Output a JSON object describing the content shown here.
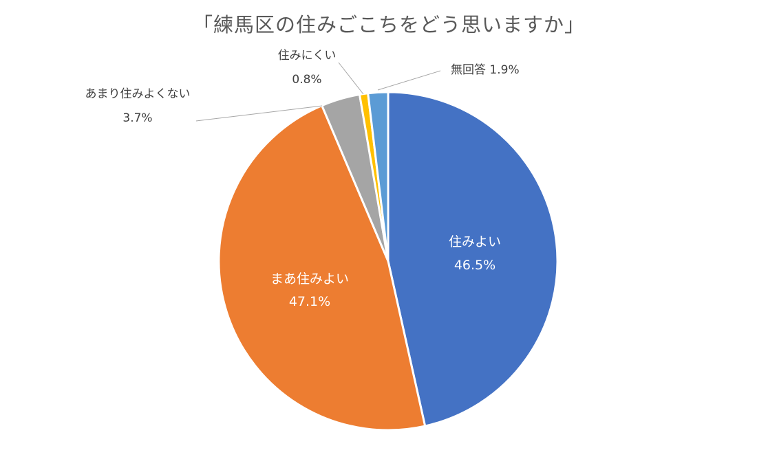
{
  "chart_data": {
    "type": "pie",
    "title": "「練馬区の住みごこちをどう思いますか」",
    "slices": [
      {
        "label": "住みよい",
        "value": 46.5,
        "value_label": "46.5%",
        "color": "#4472C4"
      },
      {
        "label": "まあ住みよい",
        "value": 47.1,
        "value_label": "47.1%",
        "color": "#ED7D31"
      },
      {
        "label": "あまり住みよくない",
        "value": 3.7,
        "value_label": "3.7%",
        "color": "#A5A5A5"
      },
      {
        "label": "住みにくい",
        "value": 0.8,
        "value_label": "0.8%",
        "color": "#FFC000"
      },
      {
        "label": "無回答",
        "value": 1.9,
        "value_label": "1.9%",
        "color": "#5B9BD5"
      }
    ],
    "start_angle": "12 o'clock",
    "direction": "clockwise",
    "legend": "none",
    "data_labels": "inside for large slices, outside with leader lines for small slices"
  }
}
